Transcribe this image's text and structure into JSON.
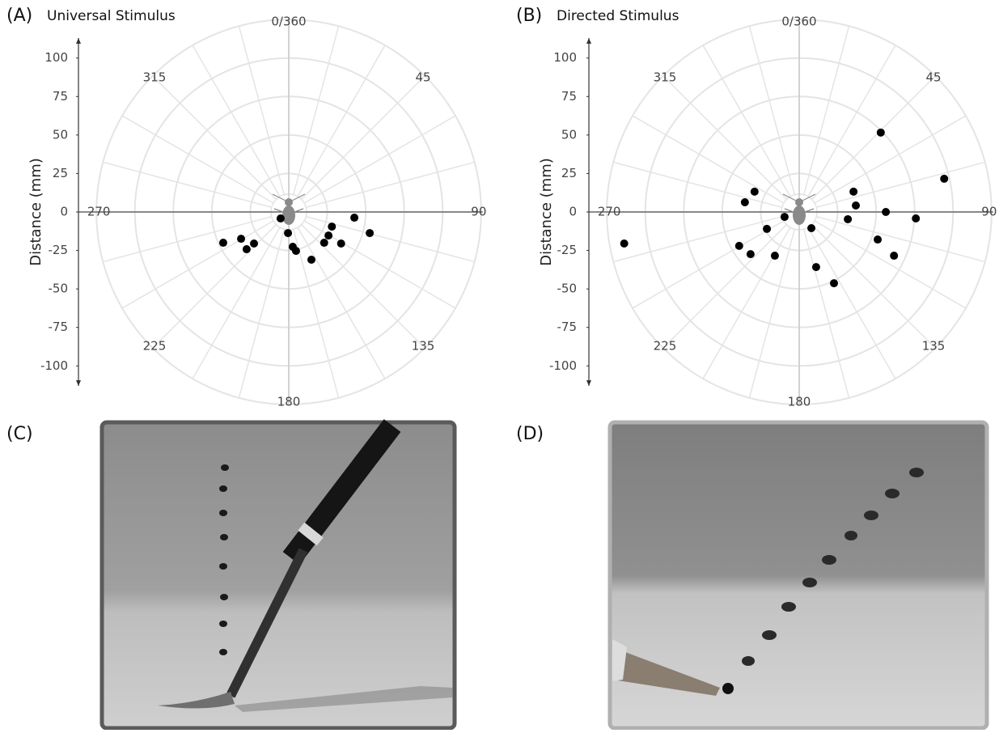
{
  "chart_data": [
    {
      "type": "scatter",
      "panel_label": "(A)",
      "title": "Universal Stimulus",
      "ylabel": "Distance (mm)",
      "ylim": [
        -113,
        113
      ],
      "yticks": [
        100,
        75,
        50,
        25,
        0,
        -25,
        -50,
        -75,
        -100
      ],
      "rlim": [
        0,
        125
      ],
      "angle_ticks": [
        {
          "value": 0,
          "label": "0/360"
        },
        45,
        90,
        135,
        180,
        225,
        270,
        315
      ],
      "color": "#000000",
      "x": [
        -42.6,
        -31.0,
        -27.4,
        -22.6,
        -5.3,
        -0.5,
        2.6,
        4.7,
        14.7,
        23.0,
        25.8,
        28.0,
        34.0,
        42.6,
        52.6
      ],
      "y": [
        -20.0,
        -17.4,
        -24.2,
        -20.5,
        -4.2,
        -13.7,
        -22.6,
        -25.3,
        -31.0,
        -20.0,
        -15.3,
        -9.5,
        -20.5,
        -3.7,
        -13.7
      ]
    },
    {
      "type": "scatter",
      "panel_label": "(B)",
      "title": "Directed Stimulus",
      "ylabel": "Distance (mm)",
      "ylim": [
        -113,
        113
      ],
      "yticks": [
        100,
        75,
        50,
        25,
        0,
        -25,
        -50,
        -75,
        -100
      ],
      "rlim": [
        0,
        125
      ],
      "angle_ticks": [
        {
          "value": 0,
          "label": "0/360"
        },
        45,
        90,
        135,
        180,
        225,
        270,
        315
      ],
      "color": "#000000",
      "x": [
        -113.7,
        -35.3,
        -29.0,
        -39.0,
        -31.6,
        -21.0,
        -15.8,
        -9.5,
        7.9,
        11.0,
        22.6,
        31.6,
        35.3,
        36.8,
        53.0,
        56.3,
        51.0,
        61.6,
        75.8,
        94.2
      ],
      "y": [
        -20.5,
        6.3,
        13.2,
        -22.0,
        -27.4,
        -11.0,
        -28.4,
        -3.2,
        -10.5,
        -35.8,
        -46.3,
        -4.7,
        13.2,
        4.2,
        51.6,
        0.0,
        -17.9,
        -28.4,
        -4.2,
        21.6
      ]
    }
  ],
  "photos": [
    {
      "label": "(C)"
    },
    {
      "label": "(D)"
    }
  ]
}
